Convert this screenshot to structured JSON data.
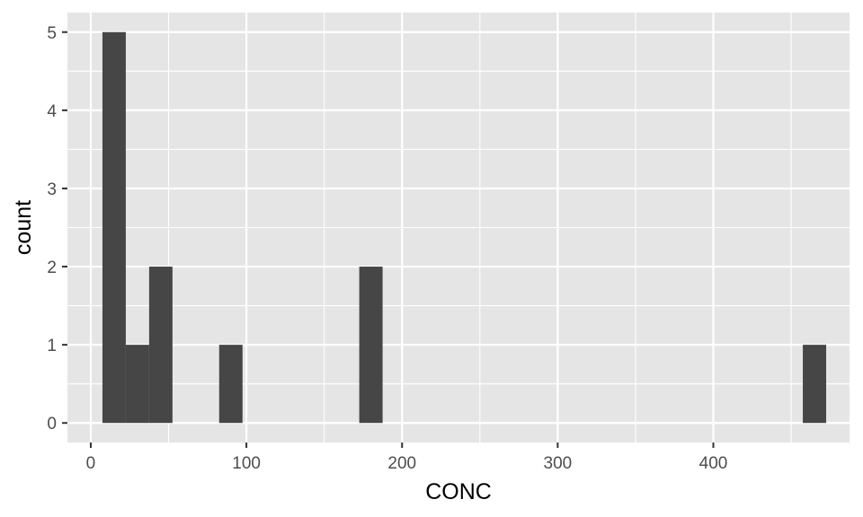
{
  "chart_data": {
    "type": "bar",
    "bin_width": 15,
    "bins": [
      {
        "x0": 7.5,
        "x1": 22.5,
        "count": 5
      },
      {
        "x0": 22.5,
        "x1": 37.5,
        "count": 1
      },
      {
        "x0": 37.5,
        "x1": 52.5,
        "count": 2
      },
      {
        "x0": 82.5,
        "x1": 97.5,
        "count": 1
      },
      {
        "x0": 172.5,
        "x1": 187.5,
        "count": 2
      },
      {
        "x0": 457.5,
        "x1": 472.5,
        "count": 1
      }
    ],
    "xlabel": "CONC",
    "ylabel": "count",
    "xlim": [
      -15,
      487.5
    ],
    "ylim": [
      -0.25,
      5.25
    ],
    "x_ticks": [
      0,
      100,
      200,
      300,
      400
    ],
    "x_tick_labels": [
      "0",
      "100",
      "200",
      "300",
      "400"
    ],
    "y_ticks": [
      0,
      1,
      2,
      3,
      4,
      5
    ],
    "y_tick_labels": [
      "0",
      "1",
      "2",
      "3",
      "4",
      "5"
    ],
    "x_minor_ticks": [
      50,
      150,
      250,
      350,
      450
    ],
    "y_minor_ticks": [
      0.5,
      1.5,
      2.5,
      3.5,
      4.5
    ],
    "grid": true,
    "colors": {
      "panel": "#e5e5e5",
      "grid": "#ffffff",
      "bar": "#464646",
      "tick": "#333333"
    }
  }
}
